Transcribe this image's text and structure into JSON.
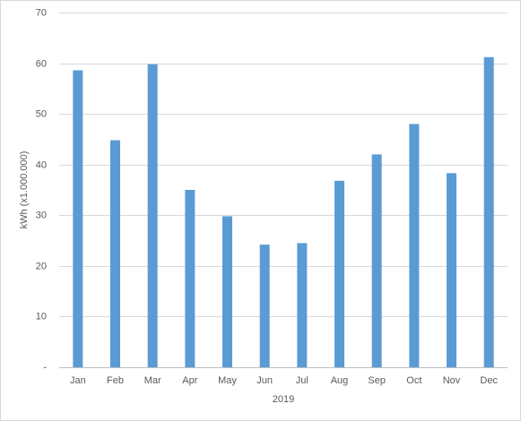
{
  "chart_data": {
    "type": "bar",
    "y_label": "kWh (x1.000.000)",
    "x_label": "2019",
    "categories": [
      "Jan",
      "Feb",
      "Mar",
      "Apr",
      "May",
      "Jun",
      "Jul",
      "Aug",
      "Sep",
      "Oct",
      "Nov",
      "Dec"
    ],
    "values": [
      58.6,
      44.8,
      59.8,
      35,
      29.8,
      24.2,
      24.5,
      36.8,
      42,
      48,
      38.3,
      61.2
    ],
    "color": "#5b9bd5",
    "ylim": [
      0,
      70
    ],
    "yticks": [
      {
        "value": 0,
        "label": "-"
      },
      10,
      20,
      30,
      40,
      50,
      60,
      70
    ],
    "grid": true
  }
}
